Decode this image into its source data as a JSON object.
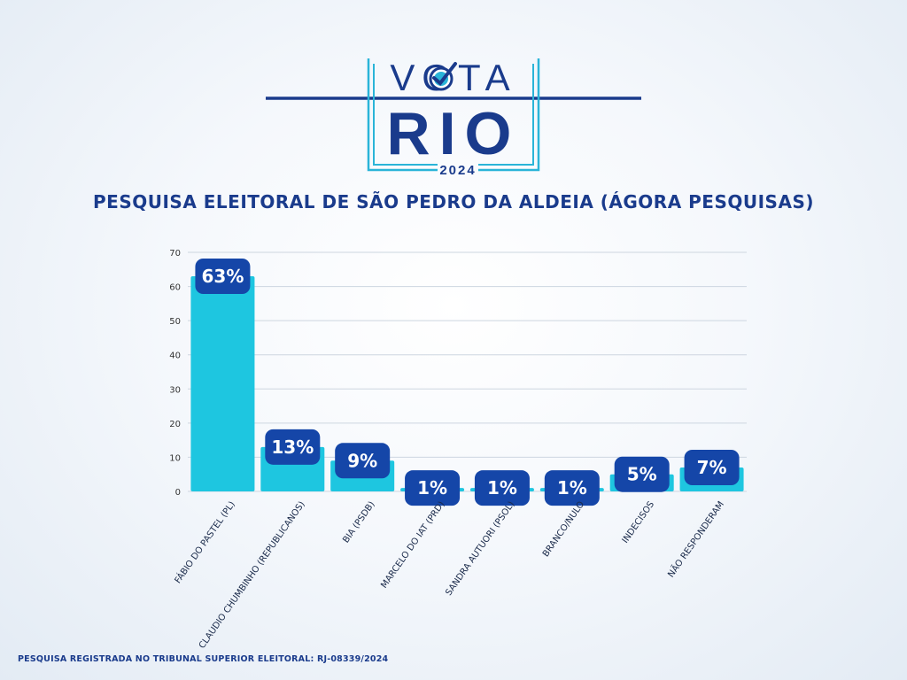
{
  "logo": {
    "line1": "VOTA",
    "line2": "RIO",
    "year": "2024"
  },
  "chart_data": {
    "type": "bar",
    "title": "PESQUISA ELEITORAL DE SÃO PEDRO DA ALDEIA (ÁGORA PESQUISAS)",
    "categories": [
      "FÁBIO DO PASTEL (PL)",
      "CLAUDIO CHUMBINHO (REPUBLICANOS)",
      "BIA (PSDB)",
      "MARCELO DO IAT (PRD)",
      "SANDRA AUTUORI (PSOL)",
      "BRANCO/NULO",
      "INDECISOS",
      "NÃO RESPONDERAM"
    ],
    "values": [
      63,
      13,
      9,
      1,
      1,
      1,
      5,
      7
    ],
    "labels": [
      "63%",
      "13%",
      "9%",
      "1%",
      "1%",
      "1%",
      "5%",
      "7%"
    ],
    "yticks": [
      "0",
      "10",
      "20",
      "30",
      "40",
      "50",
      "60",
      "70"
    ],
    "ylim": [
      0,
      70
    ],
    "grid": true,
    "bar_color": "#1ec6e0",
    "label_bg_color": "#1546a8"
  },
  "footer": "PESQUISA REGISTRADA NO TRIBUNAL SUPERIOR ELEITORAL: RJ-08339/2024"
}
